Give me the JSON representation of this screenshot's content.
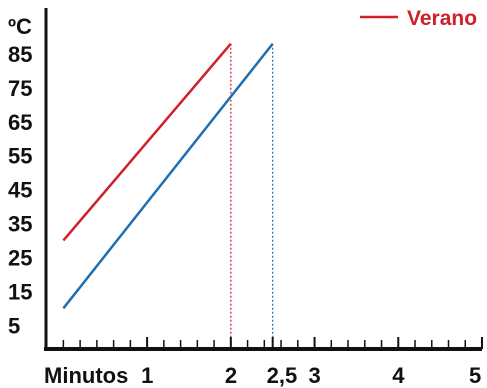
{
  "chart_data": {
    "type": "line",
    "title": "",
    "ylabel": "ºC",
    "xlabel": "Minutos",
    "xlim": [
      -0.1,
      5.0
    ],
    "ylim": [
      -2,
      95
    ],
    "y_ticks": [
      "5",
      "15",
      "25",
      "35",
      "45",
      "55",
      "65",
      "75",
      "85"
    ],
    "x_ticks": [
      {
        "value": 1,
        "label": "1",
        "color": "#111111"
      },
      {
        "value": 2,
        "label": "2",
        "color": "#d0202a"
      },
      {
        "value": 2.5,
        "label": "2,5",
        "color": "#5b86c5"
      },
      {
        "value": 3,
        "label": "3",
        "color": "#111111"
      },
      {
        "value": 4,
        "label": "4",
        "color": "#111111"
      },
      {
        "value": 5,
        "label": "5",
        "color": "#111111"
      }
    ],
    "minor_tick_step": 0.2,
    "grid": false,
    "legend_position": "top-right",
    "series": [
      {
        "name": "Verano",
        "color": "#d0202a",
        "x": [
          0.0,
          2.0
        ],
        "y": [
          30,
          88
        ],
        "drop_line_x": 2.0
      },
      {
        "name": "",
        "color": "#1f6eb0",
        "x": [
          0.0,
          2.5
        ],
        "y": [
          10,
          88
        ],
        "drop_line_x": 2.5
      }
    ]
  }
}
